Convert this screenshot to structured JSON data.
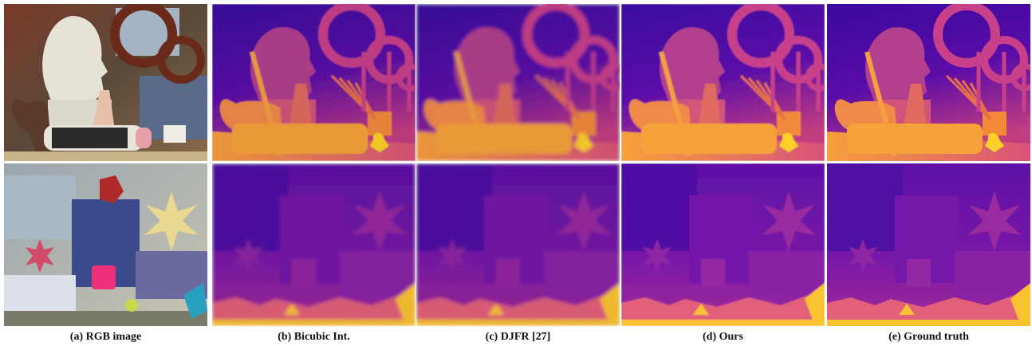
{
  "figure": {
    "panels": [
      {
        "caption": "(a) RGB image"
      },
      {
        "caption": "(b) Bicubic Int."
      },
      {
        "caption": "(c) DJFR [27]"
      },
      {
        "caption": "(d) Ours"
      },
      {
        "caption": "(e) Ground truth"
      }
    ]
  }
}
